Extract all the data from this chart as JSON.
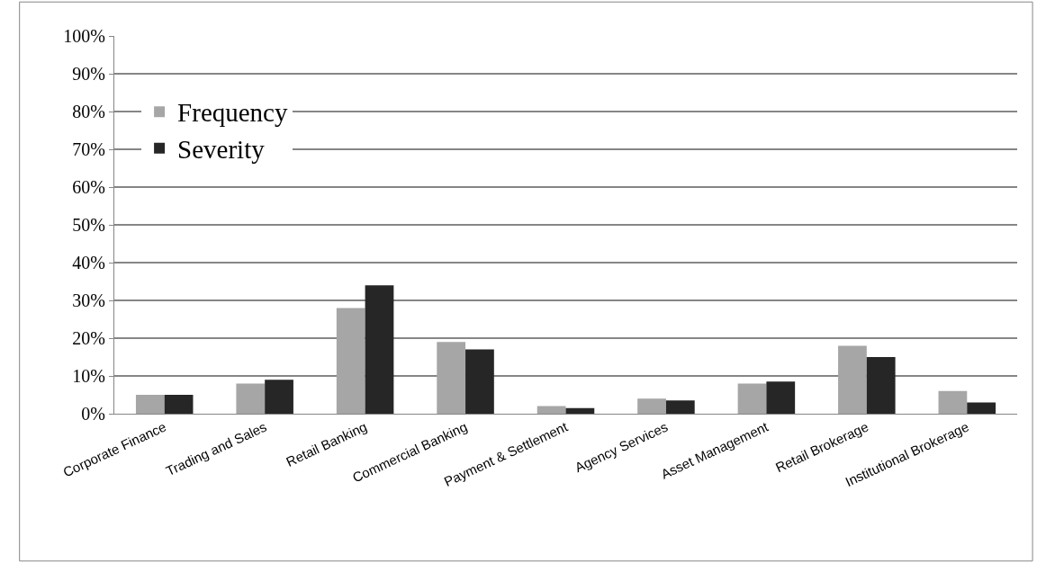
{
  "chart_data": {
    "type": "bar",
    "categories": [
      "Corporate Finance",
      "Trading and Sales",
      "Retail Banking",
      "Commercial Banking",
      "Payment & Settlement",
      "Agency Services",
      "Asset Management",
      "Retail Brokerage",
      "Institutional Brokerage"
    ],
    "series": [
      {
        "name": "Frequency",
        "color": "#a6a6a6",
        "values": [
          5,
          8,
          28,
          19,
          2,
          4,
          8,
          18,
          6
        ]
      },
      {
        "name": "Severity",
        "color": "#262626",
        "values": [
          5,
          9,
          34,
          17,
          1.5,
          3.5,
          8.5,
          15,
          3
        ]
      }
    ],
    "ylim": [
      0,
      100
    ],
    "yticks": [
      {
        "value": 0,
        "label": "0%"
      },
      {
        "value": 10,
        "label": "10%"
      },
      {
        "value": 20,
        "label": "20%"
      },
      {
        "value": 30,
        "label": "30%"
      },
      {
        "value": 40,
        "label": "40%"
      },
      {
        "value": 50,
        "label": "50%"
      },
      {
        "value": 60,
        "label": "60%"
      },
      {
        "value": 70,
        "label": "70%"
      },
      {
        "value": 80,
        "label": "80%"
      },
      {
        "value": 90,
        "label": "90%"
      },
      {
        "value": 100,
        "label": "100%"
      }
    ],
    "grid": "y",
    "legend": "top left"
  }
}
